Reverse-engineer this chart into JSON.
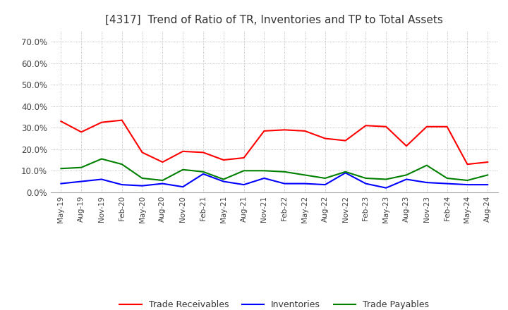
{
  "title": "[4317]  Trend of Ratio of TR, Inventories and TP to Total Assets",
  "title_fontsize": 11,
  "ylim": [
    0.0,
    0.75
  ],
  "yticks": [
    0.0,
    0.1,
    0.2,
    0.3,
    0.4,
    0.5,
    0.6,
    0.7
  ],
  "ytick_labels": [
    "0.0%",
    "10.0%",
    "20.0%",
    "30.0%",
    "40.0%",
    "50.0%",
    "60.0%",
    "70.0%"
  ],
  "x_labels": [
    "May-19",
    "Aug-19",
    "Nov-19",
    "Feb-20",
    "May-20",
    "Aug-20",
    "Nov-20",
    "Feb-21",
    "May-21",
    "Aug-21",
    "Nov-21",
    "Feb-22",
    "May-22",
    "Aug-22",
    "Nov-22",
    "Feb-23",
    "May-23",
    "Aug-23",
    "Nov-23",
    "Feb-24",
    "May-24",
    "Aug-24"
  ],
  "trade_receivables": [
    0.33,
    0.28,
    0.325,
    0.335,
    0.185,
    0.14,
    0.19,
    0.185,
    0.15,
    0.16,
    0.285,
    0.29,
    0.285,
    0.25,
    0.24,
    0.31,
    0.305,
    0.215,
    0.305,
    0.305,
    0.13,
    0.14
  ],
  "inventories": [
    0.04,
    0.05,
    0.06,
    0.035,
    0.03,
    0.04,
    0.025,
    0.085,
    0.05,
    0.035,
    0.065,
    0.04,
    0.04,
    0.035,
    0.09,
    0.04,
    0.02,
    0.06,
    0.045,
    0.04,
    0.035,
    0.035
  ],
  "trade_payables": [
    0.11,
    0.115,
    0.155,
    0.13,
    0.065,
    0.055,
    0.105,
    0.095,
    0.06,
    0.1,
    0.1,
    0.095,
    0.08,
    0.065,
    0.095,
    0.065,
    0.06,
    0.08,
    0.125,
    0.065,
    0.055,
    0.08
  ],
  "tr_color": "#ff0000",
  "inv_color": "#0000ff",
  "tp_color": "#008000",
  "legend_labels": [
    "Trade Receivables",
    "Inventories",
    "Trade Payables"
  ],
  "background_color": "#ffffff",
  "grid_color": "#aaaaaa"
}
